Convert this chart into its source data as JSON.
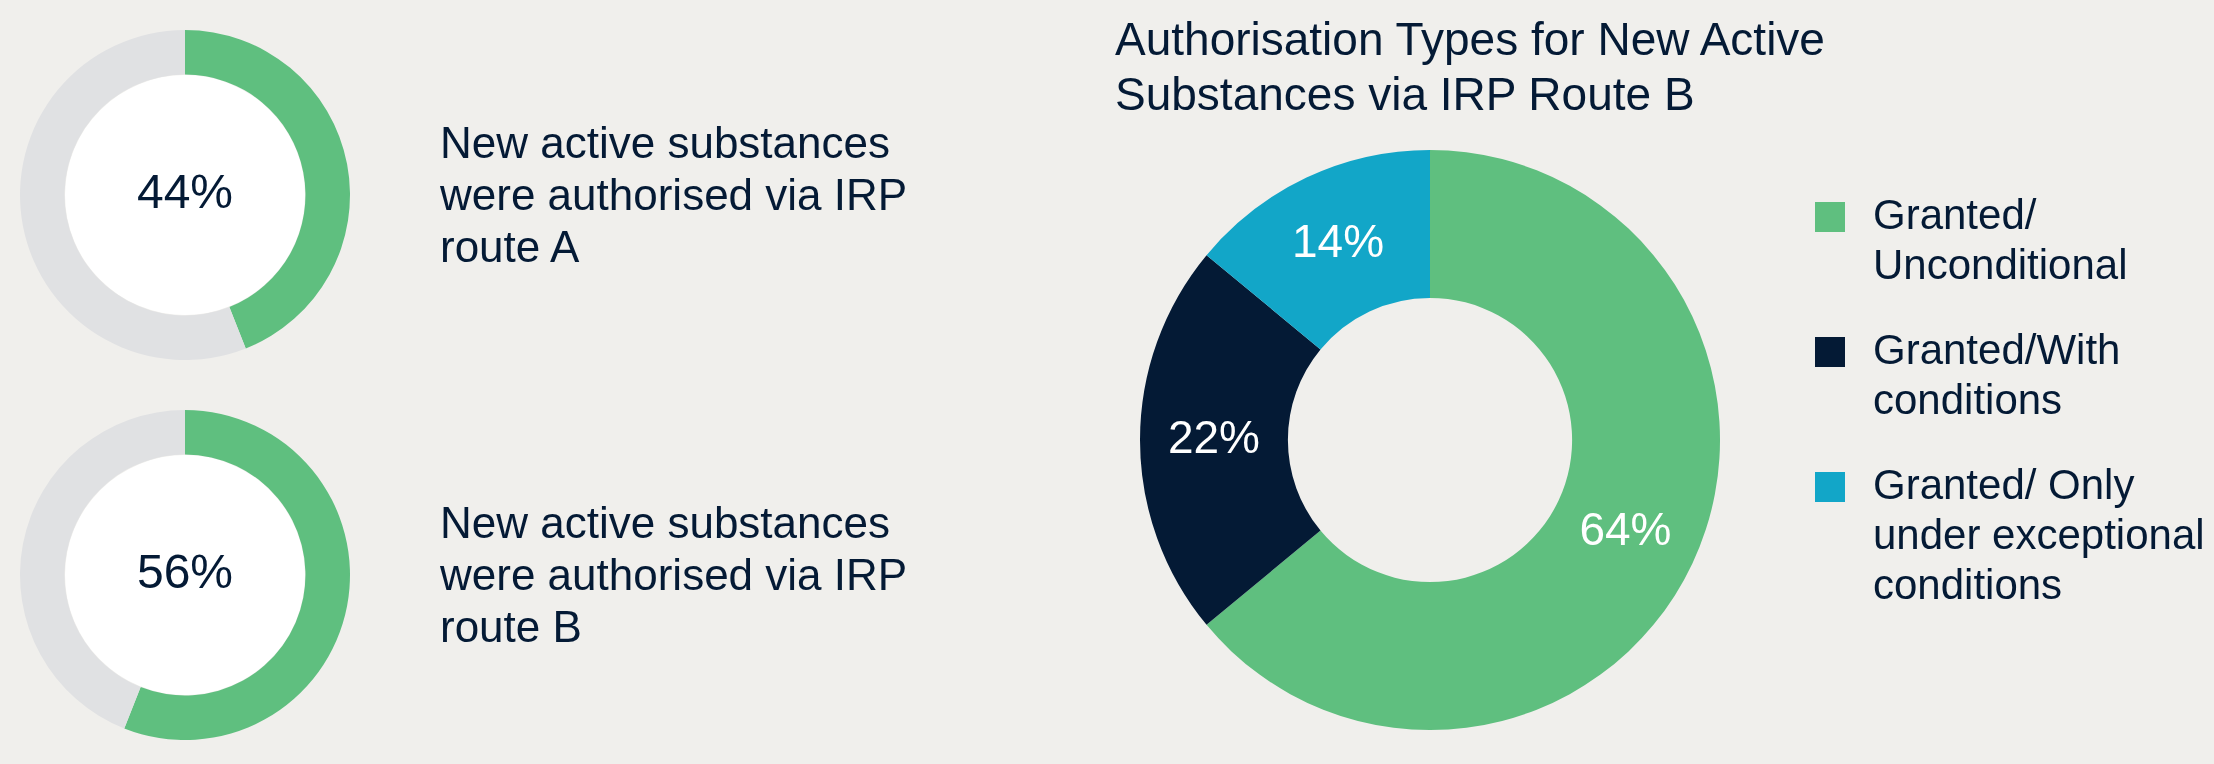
{
  "chart_data": [
    {
      "type": "donut",
      "categories": [
        null,
        null
      ],
      "values": [
        44,
        56
      ],
      "colors": [
        "#5fbf7f",
        "#e0e1e3"
      ],
      "value_labels": [
        "44%",
        null
      ],
      "annotations": [
        "New active substances were authorised via IRP route A"
      ]
    },
    {
      "type": "donut",
      "categories": [
        null,
        null
      ],
      "values": [
        56,
        44
      ],
      "colors": [
        "#5fbf7f",
        "#e0e1e3"
      ],
      "value_labels": [
        "56%",
        null
      ],
      "annotations": [
        "New active substances were authorised via IRP route B"
      ]
    },
    {
      "type": "donut",
      "title": "Authorisation Types for New Active Substances via IRP Route B",
      "categories": [
        "Granted/ Unconditional",
        "Granted/With conditions",
        "Granted/ Only under exceptional conditions"
      ],
      "values": [
        64,
        22,
        14
      ],
      "colors": [
        "#5fbf7f",
        "#041a35",
        "#12a6c8"
      ],
      "value_labels": [
        "64%",
        "22%",
        "14%"
      ],
      "legend": "right"
    }
  ]
}
